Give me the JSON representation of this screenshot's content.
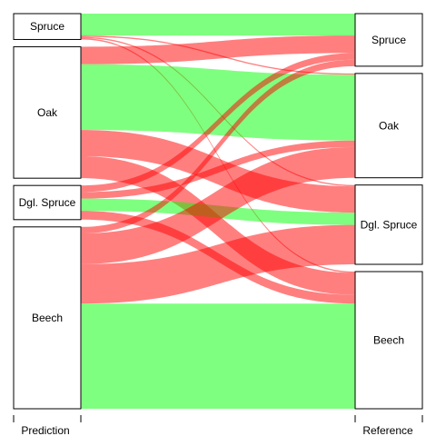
{
  "chart_data": {
    "type": "alluvial",
    "axes": [
      {
        "label": "Prediction",
        "strata": [
          "Spruce",
          "Oak",
          "Dgl. Spruce",
          "Beech"
        ]
      },
      {
        "label": "Reference",
        "strata": [
          "Spruce",
          "Oak",
          "Dgl. Spruce",
          "Beech"
        ]
      }
    ],
    "flows": [
      {
        "from": "Spruce",
        "to": "Spruce",
        "value": 5.0,
        "correct": true
      },
      {
        "from": "Spruce",
        "to": "Oak",
        "value": 0.3,
        "correct": false
      },
      {
        "from": "Spruce",
        "to": "Dgl. Spruce",
        "value": 0.3,
        "correct": false
      },
      {
        "from": "Spruce",
        "to": "Beech",
        "value": 0.3,
        "correct": false
      },
      {
        "from": "Oak",
        "to": "Spruce",
        "value": 4.0,
        "correct": false
      },
      {
        "from": "Oak",
        "to": "Oak",
        "value": 15.0,
        "correct": true
      },
      {
        "from": "Oak",
        "to": "Dgl. Spruce",
        "value": 6.0,
        "correct": false
      },
      {
        "from": "Oak",
        "to": "Beech",
        "value": 5.0,
        "correct": false
      },
      {
        "from": "Dgl. Spruce",
        "to": "Spruce",
        "value": 1.5,
        "correct": false
      },
      {
        "from": "Dgl. Spruce",
        "to": "Oak",
        "value": 1.5,
        "correct": false
      },
      {
        "from": "Dgl. Spruce",
        "to": "Dgl. Spruce",
        "value": 2.8,
        "correct": true
      },
      {
        "from": "Dgl. Spruce",
        "to": "Beech",
        "value": 2.0,
        "correct": false
      },
      {
        "from": "Beech",
        "to": "Spruce",
        "value": 1.5,
        "correct": false
      },
      {
        "from": "Beech",
        "to": "Oak",
        "value": 7.0,
        "correct": false
      },
      {
        "from": "Beech",
        "to": "Dgl. Spruce",
        "value": 9.0,
        "correct": false
      },
      {
        "from": "Beech",
        "to": "Beech",
        "value": 24.0,
        "correct": true
      }
    ],
    "colors": {
      "correct": "#00ff00",
      "incorrect": "#ff0000",
      "opacity": 0.5
    }
  }
}
